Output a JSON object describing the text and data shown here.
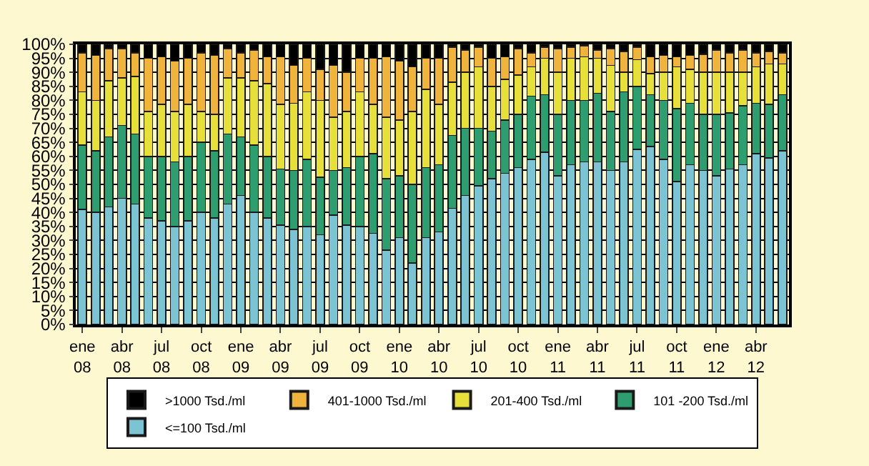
{
  "chart_data": {
    "type": "bar",
    "stacked": true,
    "categories": [
      "ene 08",
      null,
      null,
      "abr 08",
      null,
      null,
      "jul 08",
      null,
      null,
      "oct 08",
      null,
      null,
      "ene 09",
      null,
      null,
      "abr 09",
      null,
      null,
      "jul 09",
      null,
      null,
      "oct 09",
      null,
      null,
      "ene 10",
      null,
      null,
      "abr 10",
      null,
      null,
      "jul 10",
      null,
      null,
      "oct 10",
      null,
      null,
      "ene 11",
      null,
      null,
      "abr 11",
      null,
      null,
      "jul 11",
      null,
      null,
      "oct 11",
      null,
      null,
      "ene 12",
      null,
      null,
      "abr 12",
      null,
      null
    ],
    "series": [
      {
        "name": "<=100 Tsd./ml",
        "color": "#7cc4d4",
        "values": [
          41,
          40,
          42,
          45,
          43,
          38,
          37,
          35,
          37,
          40,
          38,
          43,
          46,
          40,
          38,
          35.5,
          34,
          35,
          32,
          39,
          35.5,
          35,
          32.5,
          26.5,
          31,
          22,
          31,
          33,
          41.5,
          46,
          49.5,
          52,
          54,
          56,
          59,
          61.5,
          53,
          57,
          58,
          58,
          55,
          58,
          62.5,
          63.5,
          59,
          51,
          57,
          55,
          53,
          55.5,
          57,
          61,
          59.5,
          62
        ]
      },
      {
        "name": "101 -200 Tsd./ml",
        "color": "#2e9e70",
        "values": [
          23,
          22,
          25,
          26,
          25,
          22,
          23,
          23,
          23,
          25,
          24,
          25,
          21,
          24,
          22,
          20,
          21,
          24,
          20.5,
          16,
          20.5,
          25,
          28.5,
          25.5,
          22,
          28,
          25,
          24,
          26,
          24,
          20.5,
          17,
          19,
          19,
          22.5,
          20.5,
          22,
          23,
          22,
          24.5,
          21,
          25,
          22.5,
          18.5,
          21,
          26,
          22,
          20,
          22,
          20,
          21,
          18,
          19,
          20
        ]
      },
      {
        "name": "201-400 Tsd./ml",
        "color": "#e8e03a",
        "values": [
          19,
          18,
          20,
          17,
          20.5,
          16,
          18.5,
          18,
          18.5,
          11,
          13,
          20,
          21,
          23,
          26,
          23,
          24,
          24,
          27.5,
          19,
          20,
          23,
          17.5,
          22,
          20,
          26,
          28,
          21.5,
          19,
          20,
          22,
          16,
          14.5,
          14,
          10.5,
          13,
          15,
          15,
          15.5,
          12.5,
          16.5,
          7,
          9.5,
          7.5,
          10,
          15,
          12,
          15,
          15,
          14.5,
          12,
          13,
          14.5,
          11
        ]
      },
      {
        "name": "401-1000 Tsd./ml",
        "color": "#f0b43c",
        "values": [
          14,
          16,
          11.5,
          10.5,
          8.5,
          19,
          17,
          18,
          16.5,
          21,
          21,
          10.5,
          9,
          11,
          9.5,
          17,
          13.5,
          12,
          11,
          18.5,
          14,
          12,
          16.5,
          21.5,
          21,
          16,
          11,
          16.5,
          12.5,
          8,
          7,
          10,
          8,
          9.5,
          5,
          4,
          8.5,
          4,
          4,
          3,
          6,
          7.5,
          4.5,
          6,
          6,
          3.5,
          5,
          6.5,
          8,
          7,
          8,
          5,
          4.5,
          4
        ]
      },
      {
        "name": ">1000 Tsd./ml",
        "color": "#000000",
        "values": [
          3,
          4,
          1.5,
          1.5,
          3,
          5,
          4.5,
          6,
          5,
          3,
          4,
          1.5,
          3,
          2,
          4.5,
          4.5,
          7.5,
          5,
          9,
          7.5,
          10,
          5,
          5,
          4.5,
          6,
          8,
          5,
          5,
          1,
          2,
          1,
          5,
          4.5,
          1.5,
          3,
          1,
          1.5,
          1,
          0.5,
          2,
          1.5,
          2.5,
          1,
          4.5,
          4,
          4.5,
          4,
          3.5,
          2,
          3,
          2,
          3,
          2.5,
          3
        ]
      }
    ],
    "ylim": [
      0,
      100
    ],
    "yticks": [
      {
        "value": 0,
        "label": "0%"
      },
      {
        "value": 5,
        "label": "5%"
      },
      {
        "value": 10,
        "label": "10%"
      },
      {
        "value": 15,
        "label": "15%"
      },
      {
        "value": 20,
        "label": "20%"
      },
      {
        "value": 25,
        "label": "25%"
      },
      {
        "value": 30,
        "label": "30%"
      },
      {
        "value": 35,
        "label": "35%"
      },
      {
        "value": 40,
        "label": "40%"
      },
      {
        "value": 45,
        "label": "45%"
      },
      {
        "value": 50,
        "label": "50%"
      },
      {
        "value": 55,
        "label": "55%"
      },
      {
        "value": 60,
        "label": "60%"
      },
      {
        "value": 65,
        "label": "65%"
      },
      {
        "value": 70,
        "label": "70%"
      },
      {
        "value": 75,
        "label": "75%"
      },
      {
        "value": 80,
        "label": "80%"
      },
      {
        "value": 85,
        "label": "85%"
      },
      {
        "value": 90,
        "label": "90%"
      },
      {
        "value": 95,
        "label": "95%"
      },
      {
        "value": 100,
        "label": "100%"
      }
    ],
    "grid": "y",
    "legend": "bottom"
  }
}
